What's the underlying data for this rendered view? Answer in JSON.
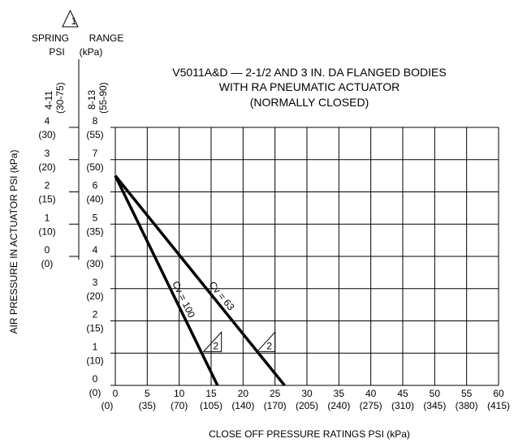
{
  "chart_data": {
    "type": "line",
    "title_lines": [
      "V5011A&D — 2-1/2 AND 3 IN. DA FLANGED BODIES",
      "WITH  RA PNEUMATIC ACTUATOR",
      "(NORMALLY CLOSED)"
    ],
    "xlabel": "CLOSE  OFF  PRESSURE  RATINGS  PSI  (kPa)",
    "ylabel": "AIR PRESSURE IN ACTUATOR PSI (kPa)",
    "xlim": [
      0,
      60
    ],
    "ylim": [
      0,
      8
    ],
    "grid": true,
    "x_ticks": [
      {
        "value": 0,
        "psi": "0",
        "kpa": "(0)"
      },
      {
        "value": 5,
        "psi": "5",
        "kpa": "(35)"
      },
      {
        "value": 10,
        "psi": "10",
        "kpa": "(70)"
      },
      {
        "value": 15,
        "psi": "15",
        "kpa": "(105)"
      },
      {
        "value": 20,
        "psi": "20",
        "kpa": "(140)"
      },
      {
        "value": 25,
        "psi": "25",
        "kpa": "(170)"
      },
      {
        "value": 30,
        "psi": "30",
        "kpa": "(205)"
      },
      {
        "value": 35,
        "psi": "35",
        "kpa": "(240)"
      },
      {
        "value": 40,
        "psi": "40",
        "kpa": "(275)"
      },
      {
        "value": 45,
        "psi": "45",
        "kpa": "(310)"
      },
      {
        "value": 50,
        "psi": "50",
        "kpa": "(345)"
      },
      {
        "value": 55,
        "psi": "55",
        "kpa": "(380)"
      },
      {
        "value": 60,
        "psi": "60",
        "kpa": "(415)"
      }
    ],
    "y_ticks": [
      {
        "value": 0,
        "psi": "0",
        "kpa": "(0)"
      },
      {
        "value": 1,
        "psi": "1",
        "kpa": "(10)"
      },
      {
        "value": 2,
        "psi": "2",
        "kpa": "(15)"
      },
      {
        "value": 3,
        "psi": "3",
        "kpa": "(20)"
      },
      {
        "value": 4,
        "psi": "4",
        "kpa": "(30)"
      },
      {
        "value": 5,
        "psi": "5",
        "kpa": "(35)"
      },
      {
        "value": 6,
        "psi": "6",
        "kpa": "(40)"
      },
      {
        "value": 7,
        "psi": "7",
        "kpa": "(50)"
      },
      {
        "value": 8,
        "psi": "8",
        "kpa": "(55)"
      }
    ],
    "spring_range": {
      "note_symbol": "1",
      "header": [
        "SPRING",
        "RANGE"
      ],
      "units": [
        "PSI",
        "(kPa)"
      ],
      "ranges": [
        "4-11",
        "(30-75)",
        "8-13",
        "(55-90)"
      ],
      "scale": [
        {
          "actuator_psi": 8,
          "psi": "4",
          "kpa": "(30)"
        },
        {
          "actuator_psi": 7,
          "psi": "3",
          "kpa": "(20)"
        },
        {
          "actuator_psi": 6,
          "psi": "2",
          "kpa": "(15)"
        },
        {
          "actuator_psi": 5,
          "psi": "1",
          "kpa": "(10)"
        },
        {
          "actuator_psi": 4,
          "psi": "0",
          "kpa": "(0)"
        }
      ]
    },
    "series": [
      {
        "name": "Cv = 63",
        "note_symbol": "2",
        "x": [
          0,
          26.5
        ],
        "y": [
          6.5,
          0
        ]
      },
      {
        "name": "Cv = 100",
        "note_symbol": "2",
        "x": [
          0,
          16
        ],
        "y": [
          6.5,
          0
        ]
      }
    ]
  }
}
